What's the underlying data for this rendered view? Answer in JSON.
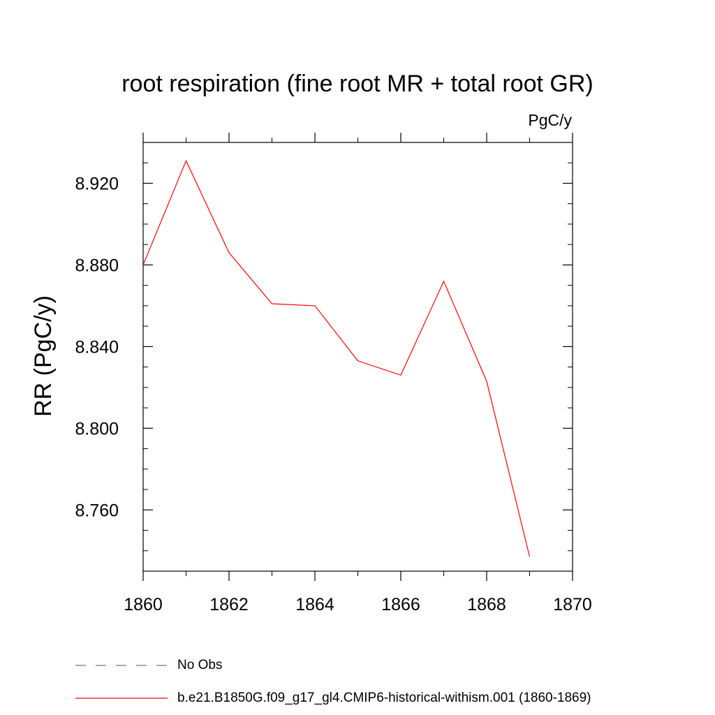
{
  "chart_data": {
    "type": "line",
    "title": "root respiration (fine root MR + total root GR)",
    "units_label": "PgC/y",
    "ylabel": "RR  (PgC/y)",
    "xlabel": "",
    "xlim": [
      1860,
      1870
    ],
    "ylim": [
      8.73,
      8.94
    ],
    "x_ticks": [
      1860,
      1862,
      1864,
      1866,
      1868,
      1870
    ],
    "y_ticks": [
      8.76,
      8.8,
      8.84,
      8.88,
      8.92
    ],
    "grid": false,
    "legend_position": "bottom",
    "series": [
      {
        "name": "b.e21.B1850G.f09_g17_gl4.CMIP6-historical-withism.001 (1860-1869)",
        "color": "#ff0000",
        "dash": "solid",
        "x": [
          1860,
          1861,
          1862,
          1863,
          1864,
          1865,
          1866,
          1867,
          1868,
          1869
        ],
        "y": [
          8.88,
          8.931,
          8.886,
          8.861,
          8.86,
          8.833,
          8.826,
          8.872,
          8.823,
          8.737
        ]
      }
    ],
    "legend": [
      {
        "label": "No Obs",
        "color": "#7a6bb5",
        "dash": "dashed"
      },
      {
        "label": "b.e21.B1850G.f09_g17_gl4.CMIP6-historical-withism.001 (1860-1869)",
        "color": "#ff0000",
        "dash": "solid"
      }
    ]
  }
}
